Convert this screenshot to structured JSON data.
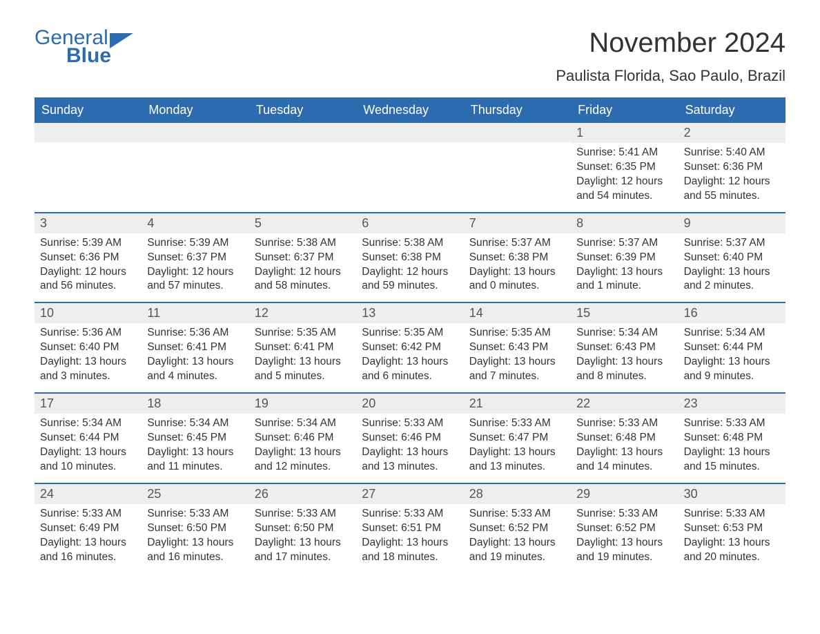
{
  "colors": {
    "header_bg": "#2c6bad",
    "header_text": "#ffffff",
    "daynum_bg": "#eeeeee",
    "week_border": "#2c6bad",
    "text": "#333333",
    "logo": "#2c6bad",
    "page_bg": "#ffffff"
  },
  "typography": {
    "title_fontsize": 40,
    "location_fontsize": 22,
    "dow_fontsize": 18,
    "daynum_fontsize": 18,
    "body_fontsize": 15.5,
    "font_family": "Arial"
  },
  "logo": {
    "line1": "General",
    "line2": "Blue"
  },
  "title": "November 2024",
  "location": "Paulista Florida, Sao Paulo, Brazil",
  "days_of_week": [
    "Sunday",
    "Monday",
    "Tuesday",
    "Wednesday",
    "Thursday",
    "Friday",
    "Saturday"
  ],
  "calendar": {
    "leading_blank": 5,
    "days": [
      {
        "n": "1",
        "sunrise": "Sunrise: 5:41 AM",
        "sunset": "Sunset: 6:35 PM",
        "daylight": "Daylight: 12 hours and 54 minutes."
      },
      {
        "n": "2",
        "sunrise": "Sunrise: 5:40 AM",
        "sunset": "Sunset: 6:36 PM",
        "daylight": "Daylight: 12 hours and 55 minutes."
      },
      {
        "n": "3",
        "sunrise": "Sunrise: 5:39 AM",
        "sunset": "Sunset: 6:36 PM",
        "daylight": "Daylight: 12 hours and 56 minutes."
      },
      {
        "n": "4",
        "sunrise": "Sunrise: 5:39 AM",
        "sunset": "Sunset: 6:37 PM",
        "daylight": "Daylight: 12 hours and 57 minutes."
      },
      {
        "n": "5",
        "sunrise": "Sunrise: 5:38 AM",
        "sunset": "Sunset: 6:37 PM",
        "daylight": "Daylight: 12 hours and 58 minutes."
      },
      {
        "n": "6",
        "sunrise": "Sunrise: 5:38 AM",
        "sunset": "Sunset: 6:38 PM",
        "daylight": "Daylight: 12 hours and 59 minutes."
      },
      {
        "n": "7",
        "sunrise": "Sunrise: 5:37 AM",
        "sunset": "Sunset: 6:38 PM",
        "daylight": "Daylight: 13 hours and 0 minutes."
      },
      {
        "n": "8",
        "sunrise": "Sunrise: 5:37 AM",
        "sunset": "Sunset: 6:39 PM",
        "daylight": "Daylight: 13 hours and 1 minute."
      },
      {
        "n": "9",
        "sunrise": "Sunrise: 5:37 AM",
        "sunset": "Sunset: 6:40 PM",
        "daylight": "Daylight: 13 hours and 2 minutes."
      },
      {
        "n": "10",
        "sunrise": "Sunrise: 5:36 AM",
        "sunset": "Sunset: 6:40 PM",
        "daylight": "Daylight: 13 hours and 3 minutes."
      },
      {
        "n": "11",
        "sunrise": "Sunrise: 5:36 AM",
        "sunset": "Sunset: 6:41 PM",
        "daylight": "Daylight: 13 hours and 4 minutes."
      },
      {
        "n": "12",
        "sunrise": "Sunrise: 5:35 AM",
        "sunset": "Sunset: 6:41 PM",
        "daylight": "Daylight: 13 hours and 5 minutes."
      },
      {
        "n": "13",
        "sunrise": "Sunrise: 5:35 AM",
        "sunset": "Sunset: 6:42 PM",
        "daylight": "Daylight: 13 hours and 6 minutes."
      },
      {
        "n": "14",
        "sunrise": "Sunrise: 5:35 AM",
        "sunset": "Sunset: 6:43 PM",
        "daylight": "Daylight: 13 hours and 7 minutes."
      },
      {
        "n": "15",
        "sunrise": "Sunrise: 5:34 AM",
        "sunset": "Sunset: 6:43 PM",
        "daylight": "Daylight: 13 hours and 8 minutes."
      },
      {
        "n": "16",
        "sunrise": "Sunrise: 5:34 AM",
        "sunset": "Sunset: 6:44 PM",
        "daylight": "Daylight: 13 hours and 9 minutes."
      },
      {
        "n": "17",
        "sunrise": "Sunrise: 5:34 AM",
        "sunset": "Sunset: 6:44 PM",
        "daylight": "Daylight: 13 hours and 10 minutes."
      },
      {
        "n": "18",
        "sunrise": "Sunrise: 5:34 AM",
        "sunset": "Sunset: 6:45 PM",
        "daylight": "Daylight: 13 hours and 11 minutes."
      },
      {
        "n": "19",
        "sunrise": "Sunrise: 5:34 AM",
        "sunset": "Sunset: 6:46 PM",
        "daylight": "Daylight: 13 hours and 12 minutes."
      },
      {
        "n": "20",
        "sunrise": "Sunrise: 5:33 AM",
        "sunset": "Sunset: 6:46 PM",
        "daylight": "Daylight: 13 hours and 13 minutes."
      },
      {
        "n": "21",
        "sunrise": "Sunrise: 5:33 AM",
        "sunset": "Sunset: 6:47 PM",
        "daylight": "Daylight: 13 hours and 13 minutes."
      },
      {
        "n": "22",
        "sunrise": "Sunrise: 5:33 AM",
        "sunset": "Sunset: 6:48 PM",
        "daylight": "Daylight: 13 hours and 14 minutes."
      },
      {
        "n": "23",
        "sunrise": "Sunrise: 5:33 AM",
        "sunset": "Sunset: 6:48 PM",
        "daylight": "Daylight: 13 hours and 15 minutes."
      },
      {
        "n": "24",
        "sunrise": "Sunrise: 5:33 AM",
        "sunset": "Sunset: 6:49 PM",
        "daylight": "Daylight: 13 hours and 16 minutes."
      },
      {
        "n": "25",
        "sunrise": "Sunrise: 5:33 AM",
        "sunset": "Sunset: 6:50 PM",
        "daylight": "Daylight: 13 hours and 16 minutes."
      },
      {
        "n": "26",
        "sunrise": "Sunrise: 5:33 AM",
        "sunset": "Sunset: 6:50 PM",
        "daylight": "Daylight: 13 hours and 17 minutes."
      },
      {
        "n": "27",
        "sunrise": "Sunrise: 5:33 AM",
        "sunset": "Sunset: 6:51 PM",
        "daylight": "Daylight: 13 hours and 18 minutes."
      },
      {
        "n": "28",
        "sunrise": "Sunrise: 5:33 AM",
        "sunset": "Sunset: 6:52 PM",
        "daylight": "Daylight: 13 hours and 19 minutes."
      },
      {
        "n": "29",
        "sunrise": "Sunrise: 5:33 AM",
        "sunset": "Sunset: 6:52 PM",
        "daylight": "Daylight: 13 hours and 19 minutes."
      },
      {
        "n": "30",
        "sunrise": "Sunrise: 5:33 AM",
        "sunset": "Sunset: 6:53 PM",
        "daylight": "Daylight: 13 hours and 20 minutes."
      }
    ]
  }
}
